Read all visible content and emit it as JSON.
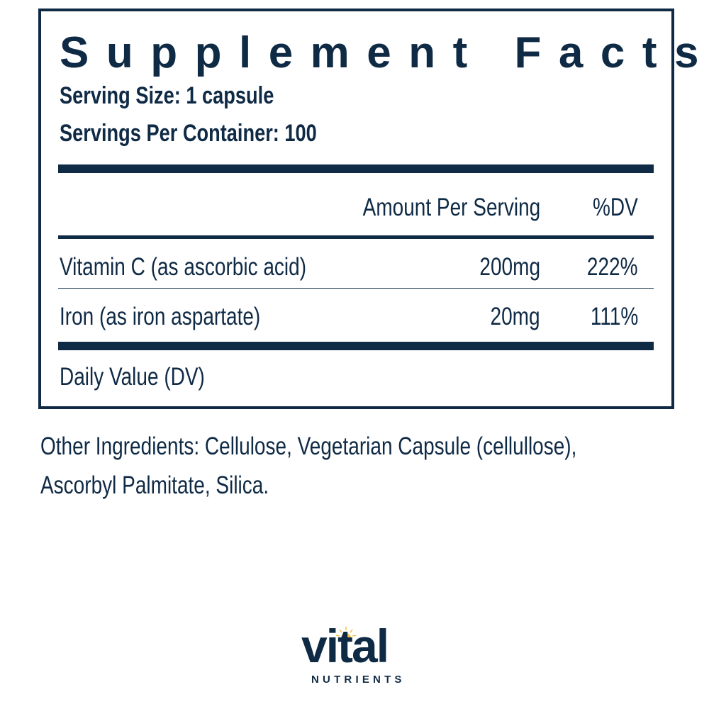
{
  "panel": {
    "title": "Supplement Facts",
    "serving_size": "Serving Size: 1 capsule",
    "servings_per_container": "Servings Per Container: 100",
    "header": {
      "amount": "Amount Per Serving",
      "dv": "%DV"
    },
    "rows": [
      {
        "name": "Vitamin C (as ascorbic acid)",
        "amount": "200mg",
        "dv": "222%"
      },
      {
        "name": "Iron (as iron aspartate)",
        "amount": "20mg",
        "dv": "111%"
      }
    ],
    "footnote": "Daily Value (DV)"
  },
  "other_ingredients": {
    "line1": "Other Ingredients: Cellulose, Vegetarian Capsule (cellullose),",
    "line2": "Ascorbyl Palmitate, Silica."
  },
  "brand": {
    "name": "vital",
    "sub": "NUTRIENTS",
    "color": "#0f2a45",
    "sun_color": "#f5c242"
  }
}
